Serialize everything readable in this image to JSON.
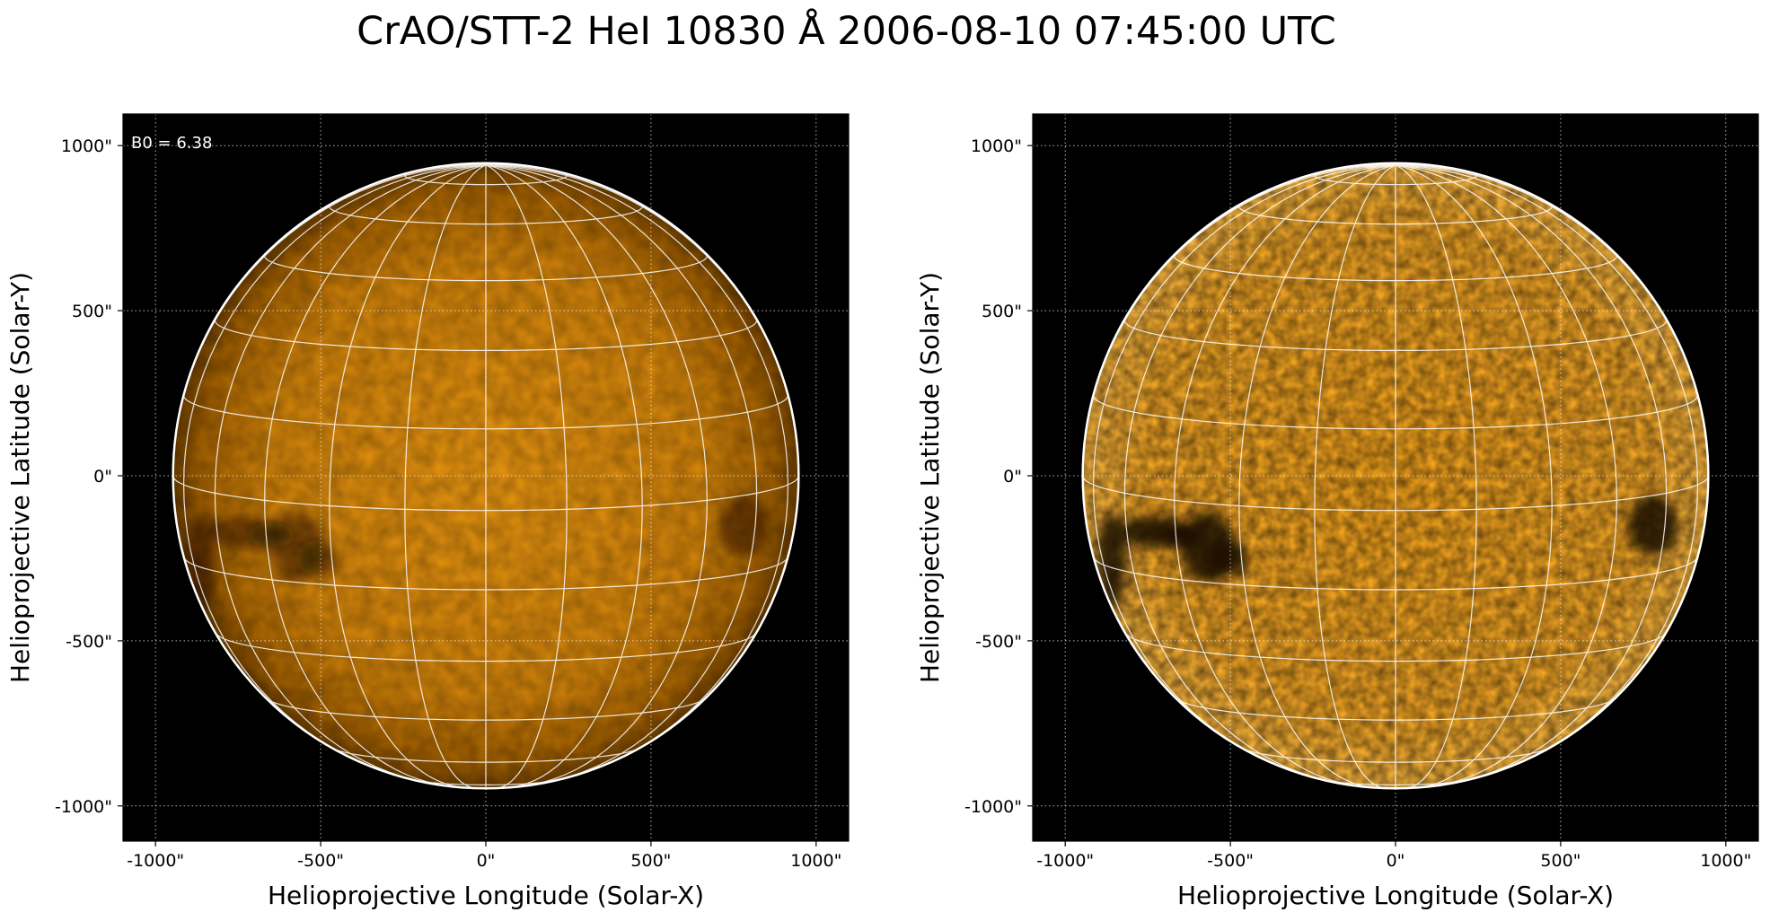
{
  "title": "CrAO/STT-2 HeI 10830 Å 2006-08-10 07:45:00 UTC",
  "colors": {
    "sun_bright": "#f6a20c",
    "sun_dim": "#7a4a00",
    "background": "#000000",
    "grid": "#ffffff"
  },
  "panels": [
    {
      "id": "left",
      "annotation": "B0 = 6.38",
      "contrast": "normal",
      "xlabel": "Helioprojective Longitude (Solar-X)",
      "ylabel": "Helioprojective Latitude (Solar-Y)",
      "xticks": [
        "-1000\"",
        "-500\"",
        "0\"",
        "500\"",
        "1000\""
      ],
      "yticks": [
        "1000\"",
        "500\"",
        "0\"",
        "-500\"",
        "-1000\""
      ]
    },
    {
      "id": "right",
      "annotation": "",
      "contrast": "enhanced",
      "xlabel": "Helioprojective Longitude (Solar-X)",
      "ylabel": "Helioprojective Latitude (Solar-Y)",
      "xticks": [
        "-1000\"",
        "-500\"",
        "0\"",
        "500\"",
        "1000\""
      ],
      "yticks": [
        "1000\"",
        "500\"",
        "0\"",
        "-500\"",
        "-1000\""
      ]
    }
  ]
}
